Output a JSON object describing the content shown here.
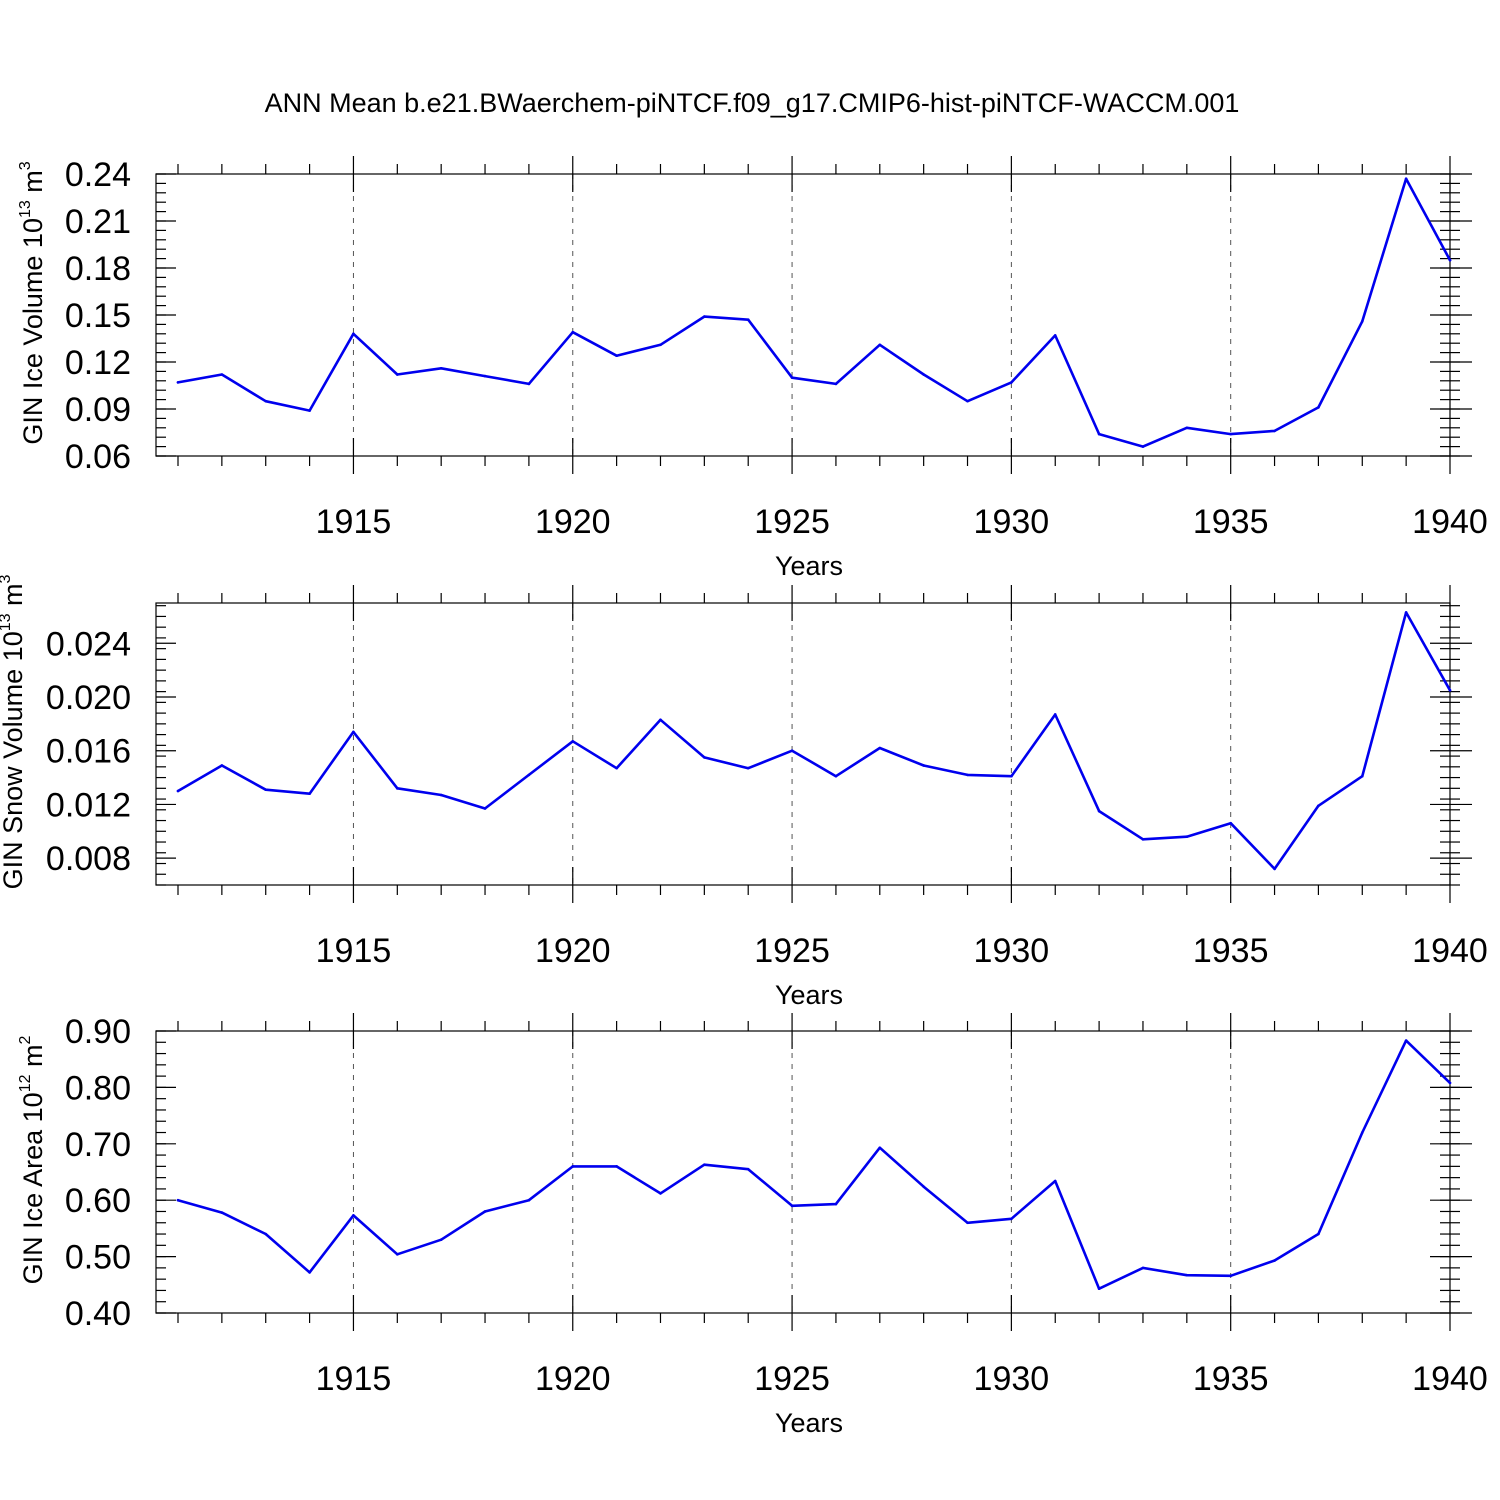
{
  "figure": {
    "title": "ANN Mean b.e21.BWaerchem-piNTCF.f09_g17.CMIP6-hist-piNTCF-WACCM.001"
  },
  "chart_data": [
    {
      "type": "line",
      "title": "",
      "xlabel": "Years",
      "ylabel": {
        "text": "GIN Ice Volume 10",
        "exp": "13",
        "unit": " m",
        "unit_exp": "3"
      },
      "xlim": [
        1911,
        1940
      ],
      "ylim": [
        0.06,
        0.24
      ],
      "xticks": [
        1915,
        1920,
        1925,
        1930,
        1935,
        1940
      ],
      "xtick_labels": [
        "1915",
        "1920",
        "1925",
        "1930",
        "1935",
        "1940"
      ],
      "yticks": [
        0.06,
        0.09,
        0.12,
        0.15,
        0.18,
        0.21,
        0.24
      ],
      "ytick_labels": [
        "0.06",
        "0.09",
        "0.12",
        "0.15",
        "0.18",
        "0.21",
        "0.24"
      ],
      "yminor_step": 0.006,
      "grid_x": true,
      "series": [
        {
          "color": "#0000ee",
          "x": [
            1911,
            1912,
            1913,
            1914,
            1915,
            1916,
            1917,
            1918,
            1919,
            1920,
            1921,
            1922,
            1923,
            1924,
            1925,
            1926,
            1927,
            1928,
            1929,
            1930,
            1931,
            1932,
            1933,
            1934,
            1935,
            1936,
            1937,
            1938,
            1939,
            1940
          ],
          "y": [
            0.107,
            0.112,
            0.095,
            0.089,
            0.138,
            0.112,
            0.116,
            0.111,
            0.106,
            0.139,
            0.124,
            0.131,
            0.149,
            0.147,
            0.11,
            0.106,
            0.131,
            0.112,
            0.095,
            0.107,
            0.137,
            0.074,
            0.066,
            0.078,
            0.074,
            0.076,
            0.091,
            0.146,
            0.237,
            0.185
          ]
        }
      ]
    },
    {
      "type": "line",
      "title": "",
      "xlabel": "Years",
      "ylabel": {
        "text": "GIN Snow Volume 10",
        "exp": "13",
        "unit": " m",
        "unit_exp": "3"
      },
      "xlim": [
        1911,
        1940
      ],
      "ylim": [
        0.006,
        0.027
      ],
      "xticks": [
        1915,
        1920,
        1925,
        1930,
        1935,
        1940
      ],
      "xtick_labels": [
        "1915",
        "1920",
        "1925",
        "1930",
        "1935",
        "1940"
      ],
      "yticks": [
        0.008,
        0.012,
        0.016,
        0.02,
        0.024
      ],
      "ytick_labels": [
        "0.008",
        "0.012",
        "0.016",
        "0.020",
        "0.024"
      ],
      "yminor_step": 0.0008,
      "grid_x": true,
      "series": [
        {
          "color": "#0000ee",
          "x": [
            1911,
            1912,
            1913,
            1914,
            1915,
            1916,
            1917,
            1918,
            1919,
            1920,
            1921,
            1922,
            1923,
            1924,
            1925,
            1926,
            1927,
            1928,
            1929,
            1930,
            1931,
            1932,
            1933,
            1934,
            1935,
            1936,
            1937,
            1938,
            1939,
            1940
          ],
          "y": [
            0.013,
            0.0149,
            0.0131,
            0.0128,
            0.0174,
            0.0132,
            0.0127,
            0.0117,
            0.0142,
            0.0167,
            0.0147,
            0.0183,
            0.0155,
            0.0147,
            0.016,
            0.0141,
            0.0162,
            0.0149,
            0.0142,
            0.0141,
            0.0187,
            0.0115,
            0.0094,
            0.0096,
            0.0106,
            0.0072,
            0.0119,
            0.0141,
            0.0263,
            0.0205
          ]
        }
      ]
    },
    {
      "type": "line",
      "title": "",
      "xlabel": "Years",
      "ylabel": {
        "text": "GIN Ice Area 10",
        "exp": "12",
        "unit": " m",
        "unit_exp": "2"
      },
      "xlim": [
        1911,
        1940
      ],
      "ylim": [
        0.4,
        0.9
      ],
      "xticks": [
        1915,
        1920,
        1925,
        1930,
        1935,
        1940
      ],
      "xtick_labels": [
        "1915",
        "1920",
        "1925",
        "1930",
        "1935",
        "1940"
      ],
      "yticks": [
        0.4,
        0.5,
        0.6,
        0.7,
        0.8,
        0.9
      ],
      "ytick_labels": [
        "0.40",
        "0.50",
        "0.60",
        "0.70",
        "0.80",
        "0.90"
      ],
      "yminor_step": 0.02,
      "grid_x": true,
      "series": [
        {
          "color": "#0000ee",
          "x": [
            1911,
            1912,
            1913,
            1914,
            1915,
            1916,
            1917,
            1918,
            1919,
            1920,
            1921,
            1922,
            1923,
            1924,
            1925,
            1926,
            1927,
            1928,
            1929,
            1930,
            1931,
            1932,
            1933,
            1934,
            1935,
            1936,
            1937,
            1938,
            1939,
            1940
          ],
          "y": [
            0.6,
            0.578,
            0.54,
            0.472,
            0.573,
            0.504,
            0.53,
            0.58,
            0.6,
            0.66,
            0.66,
            0.612,
            0.663,
            0.655,
            0.59,
            0.593,
            0.693,
            0.624,
            0.56,
            0.567,
            0.634,
            0.443,
            0.48,
            0.467,
            0.466,
            0.493,
            0.54,
            0.72,
            0.883,
            0.808
          ]
        }
      ]
    }
  ]
}
